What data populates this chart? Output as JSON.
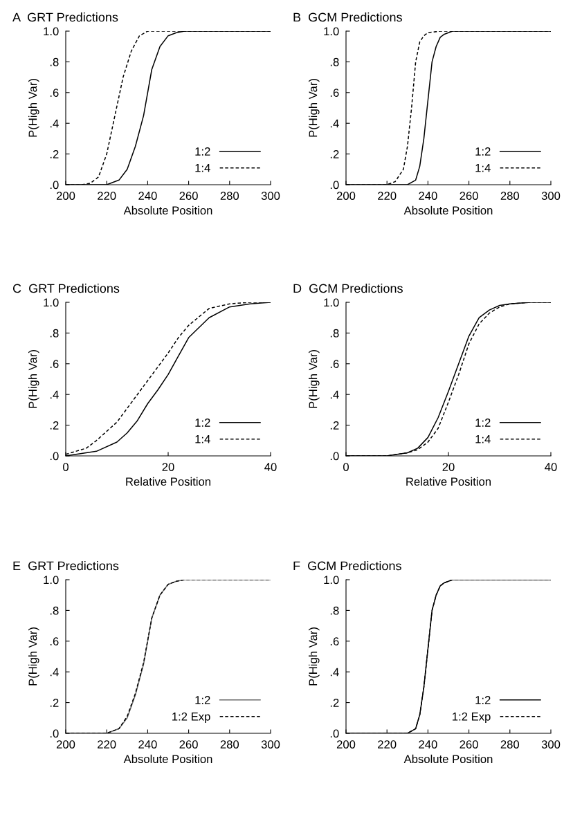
{
  "chart_data": [
    {
      "type": "line",
      "title": "A  GRT Predictions",
      "xlabel": "Absolute Position",
      "ylabel": "P(High Var)",
      "xlim": [
        200,
        300
      ],
      "xticks": [
        200,
        220,
        240,
        260,
        280,
        300
      ],
      "ylim": [
        0,
        1
      ],
      "yticks": [
        {
          "value": 0,
          "label": ".0"
        },
        {
          "value": 0.2,
          "label": ".2"
        },
        {
          "value": 0.4,
          "label": ".4"
        },
        {
          "value": 0.6,
          "label": ".6"
        },
        {
          "value": 0.8,
          "label": ".8"
        },
        {
          "value": 1,
          "label": "1.0"
        }
      ],
      "legend": "bottom right",
      "series": [
        {
          "name": "1:2",
          "color": "#000000",
          "line_style": "solid",
          "x": [
            200,
            220,
            222,
            226,
            230,
            234,
            238,
            242,
            246,
            250,
            254,
            258,
            300
          ],
          "values": [
            0,
            0,
            0.01,
            0.03,
            0.1,
            0.25,
            0.45,
            0.75,
            0.9,
            0.97,
            0.99,
            1,
            1
          ]
        },
        {
          "name": "1:4",
          "color": "#000000",
          "line_style": "dashed",
          "x": [
            200,
            208,
            212,
            216,
            220,
            224,
            228,
            232,
            236,
            240,
            300
          ],
          "values": [
            0,
            0,
            0.01,
            0.05,
            0.2,
            0.45,
            0.7,
            0.87,
            0.97,
            1,
            1
          ]
        }
      ]
    },
    {
      "type": "line",
      "title": "B  GCM Predictions",
      "xlabel": "Absolute Position",
      "ylabel": "P(High Var)",
      "xlim": [
        200,
        300
      ],
      "xticks": [
        200,
        220,
        240,
        260,
        280,
        300
      ],
      "ylim": [
        0,
        1
      ],
      "yticks": [
        {
          "value": 0,
          "label": ".0"
        },
        {
          "value": 0.2,
          "label": ".2"
        },
        {
          "value": 0.4,
          "label": ".4"
        },
        {
          "value": 0.6,
          "label": ".6"
        },
        {
          "value": 0.8,
          "label": ".8"
        },
        {
          "value": 1,
          "label": "1.0"
        }
      ],
      "legend": "bottom right",
      "series": [
        {
          "name": "1:2",
          "color": "#000000",
          "line_style": "solid",
          "x": [
            200,
            230,
            234,
            236,
            238,
            240,
            242,
            244,
            246,
            248,
            252,
            300
          ],
          "values": [
            0,
            0,
            0.03,
            0.12,
            0.3,
            0.55,
            0.8,
            0.9,
            0.96,
            0.98,
            1,
            1
          ]
        },
        {
          "name": "1:4",
          "color": "#000000",
          "line_style": "dashed",
          "x": [
            200,
            220,
            224,
            228,
            230,
            232,
            234,
            236,
            238,
            240,
            246,
            300
          ],
          "values": [
            0,
            0,
            0.02,
            0.1,
            0.25,
            0.5,
            0.8,
            0.93,
            0.97,
            0.99,
            1,
            1
          ]
        }
      ]
    },
    {
      "type": "line",
      "title": "C  GRT Predictions",
      "xlabel": "Relative Position",
      "ylabel": "P(High Var)",
      "xlim": [
        0,
        40
      ],
      "xticks": [
        0,
        20,
        40
      ],
      "ylim": [
        0,
        1
      ],
      "yticks": [
        {
          "value": 0,
          "label": ".0"
        },
        {
          "value": 0.2,
          "label": ".2"
        },
        {
          "value": 0.4,
          "label": ".4"
        },
        {
          "value": 0.6,
          "label": ".6"
        },
        {
          "value": 0.8,
          "label": ".8"
        },
        {
          "value": 1,
          "label": "1.0"
        }
      ],
      "legend": "bottom right",
      "series": [
        {
          "name": "1:2",
          "color": "#000000",
          "line_style": "solid",
          "x": [
            0,
            6,
            10,
            12,
            14,
            16,
            18,
            20,
            22,
            24,
            28,
            32,
            36,
            40
          ],
          "values": [
            0,
            0.03,
            0.09,
            0.15,
            0.23,
            0.34,
            0.43,
            0.53,
            0.65,
            0.77,
            0.9,
            0.97,
            0.99,
            1
          ]
        },
        {
          "name": "1:4",
          "color": "#000000",
          "line_style": "dashed",
          "x": [
            0,
            4,
            6,
            10,
            14,
            18,
            20,
            22,
            24,
            28,
            32,
            36,
            40
          ],
          "values": [
            0.01,
            0.05,
            0.1,
            0.22,
            0.4,
            0.58,
            0.67,
            0.77,
            0.85,
            0.96,
            0.99,
            1,
            1
          ]
        }
      ]
    },
    {
      "type": "line",
      "title": "D  GCM Predictions",
      "xlabel": "Relative Position",
      "ylabel": "P(High Var)",
      "xlim": [
        0,
        40
      ],
      "xticks": [
        0,
        20,
        40
      ],
      "ylim": [
        0,
        1
      ],
      "yticks": [
        {
          "value": 0,
          "label": ".0"
        },
        {
          "value": 0.2,
          "label": ".2"
        },
        {
          "value": 0.4,
          "label": ".4"
        },
        {
          "value": 0.6,
          "label": ".6"
        },
        {
          "value": 0.8,
          "label": ".8"
        },
        {
          "value": 1,
          "label": "1.0"
        }
      ],
      "legend": "bottom right",
      "series": [
        {
          "name": "1:2",
          "color": "#000000",
          "line_style": "solid",
          "x": [
            0,
            8,
            10,
            12,
            14,
            16,
            18,
            20,
            22,
            24,
            26,
            28,
            30,
            32,
            36,
            40
          ],
          "values": [
            0,
            0,
            0.01,
            0.02,
            0.05,
            0.12,
            0.25,
            0.42,
            0.6,
            0.78,
            0.9,
            0.95,
            0.98,
            0.99,
            1,
            1
          ]
        },
        {
          "name": "1:4",
          "color": "#000000",
          "line_style": "dashed",
          "x": [
            0,
            8,
            10,
            12,
            14,
            16,
            18,
            20,
            22,
            24,
            26,
            28,
            30,
            32,
            36,
            40
          ],
          "values": [
            0,
            0,
            0.01,
            0.02,
            0.04,
            0.09,
            0.18,
            0.35,
            0.53,
            0.73,
            0.86,
            0.93,
            0.97,
            0.99,
            1,
            1
          ]
        }
      ]
    },
    {
      "type": "line",
      "title": "E  GRT Predictions",
      "xlabel": "Absolute Position",
      "ylabel": "P(High Var)",
      "xlim": [
        200,
        300
      ],
      "xticks": [
        200,
        220,
        240,
        260,
        280,
        300
      ],
      "ylim": [
        0,
        1
      ],
      "yticks": [
        {
          "value": 0,
          "label": ".0"
        },
        {
          "value": 0.2,
          "label": ".2"
        },
        {
          "value": 0.4,
          "label": ".4"
        },
        {
          "value": 0.6,
          "label": ".6"
        },
        {
          "value": 0.8,
          "label": ".8"
        },
        {
          "value": 1,
          "label": "1.0"
        }
      ],
      "legend": "bottom right",
      "series": [
        {
          "name": "1:2",
          "color": "#666666",
          "line_style": "solid",
          "x": [
            200,
            220,
            222,
            226,
            230,
            234,
            238,
            242,
            246,
            250,
            254,
            258,
            300
          ],
          "values": [
            0,
            0,
            0.01,
            0.03,
            0.1,
            0.25,
            0.45,
            0.75,
            0.9,
            0.97,
            0.99,
            1,
            1
          ]
        },
        {
          "name": "1:2 Exp",
          "color": "#000000",
          "line_style": "dashed",
          "x": [
            200,
            220,
            222,
            226,
            230,
            234,
            238,
            242,
            246,
            250,
            254,
            258,
            300
          ],
          "values": [
            0,
            0,
            0.01,
            0.03,
            0.11,
            0.26,
            0.46,
            0.75,
            0.9,
            0.97,
            0.99,
            1,
            1
          ]
        }
      ]
    },
    {
      "type": "line",
      "title": "F  GCM Predictions",
      "xlabel": "Absolute Position",
      "ylabel": "P(High Var)",
      "xlim": [
        200,
        300
      ],
      "xticks": [
        200,
        220,
        240,
        260,
        280,
        300
      ],
      "ylim": [
        0,
        1
      ],
      "yticks": [
        {
          "value": 0,
          "label": ".0"
        },
        {
          "value": 0.2,
          "label": ".2"
        },
        {
          "value": 0.4,
          "label": ".4"
        },
        {
          "value": 0.6,
          "label": ".6"
        },
        {
          "value": 0.8,
          "label": ".8"
        },
        {
          "value": 1,
          "label": "1.0"
        }
      ],
      "legend": "bottom right",
      "series": [
        {
          "name": "1:2",
          "color": "#000000",
          "line_style": "solid",
          "x": [
            200,
            230,
            234,
            236,
            238,
            240,
            242,
            244,
            246,
            248,
            252,
            300
          ],
          "values": [
            0,
            0,
            0.03,
            0.12,
            0.3,
            0.55,
            0.8,
            0.9,
            0.96,
            0.98,
            1,
            1
          ]
        },
        {
          "name": "1:2 Exp",
          "color": "#000000",
          "line_style": "dashed",
          "x": [
            200,
            230,
            234,
            236,
            238,
            240,
            242,
            244,
            246,
            248,
            252,
            300
          ],
          "values": [
            0,
            0,
            0.03,
            0.12,
            0.3,
            0.55,
            0.8,
            0.9,
            0.96,
            0.98,
            1,
            1
          ]
        }
      ]
    }
  ]
}
